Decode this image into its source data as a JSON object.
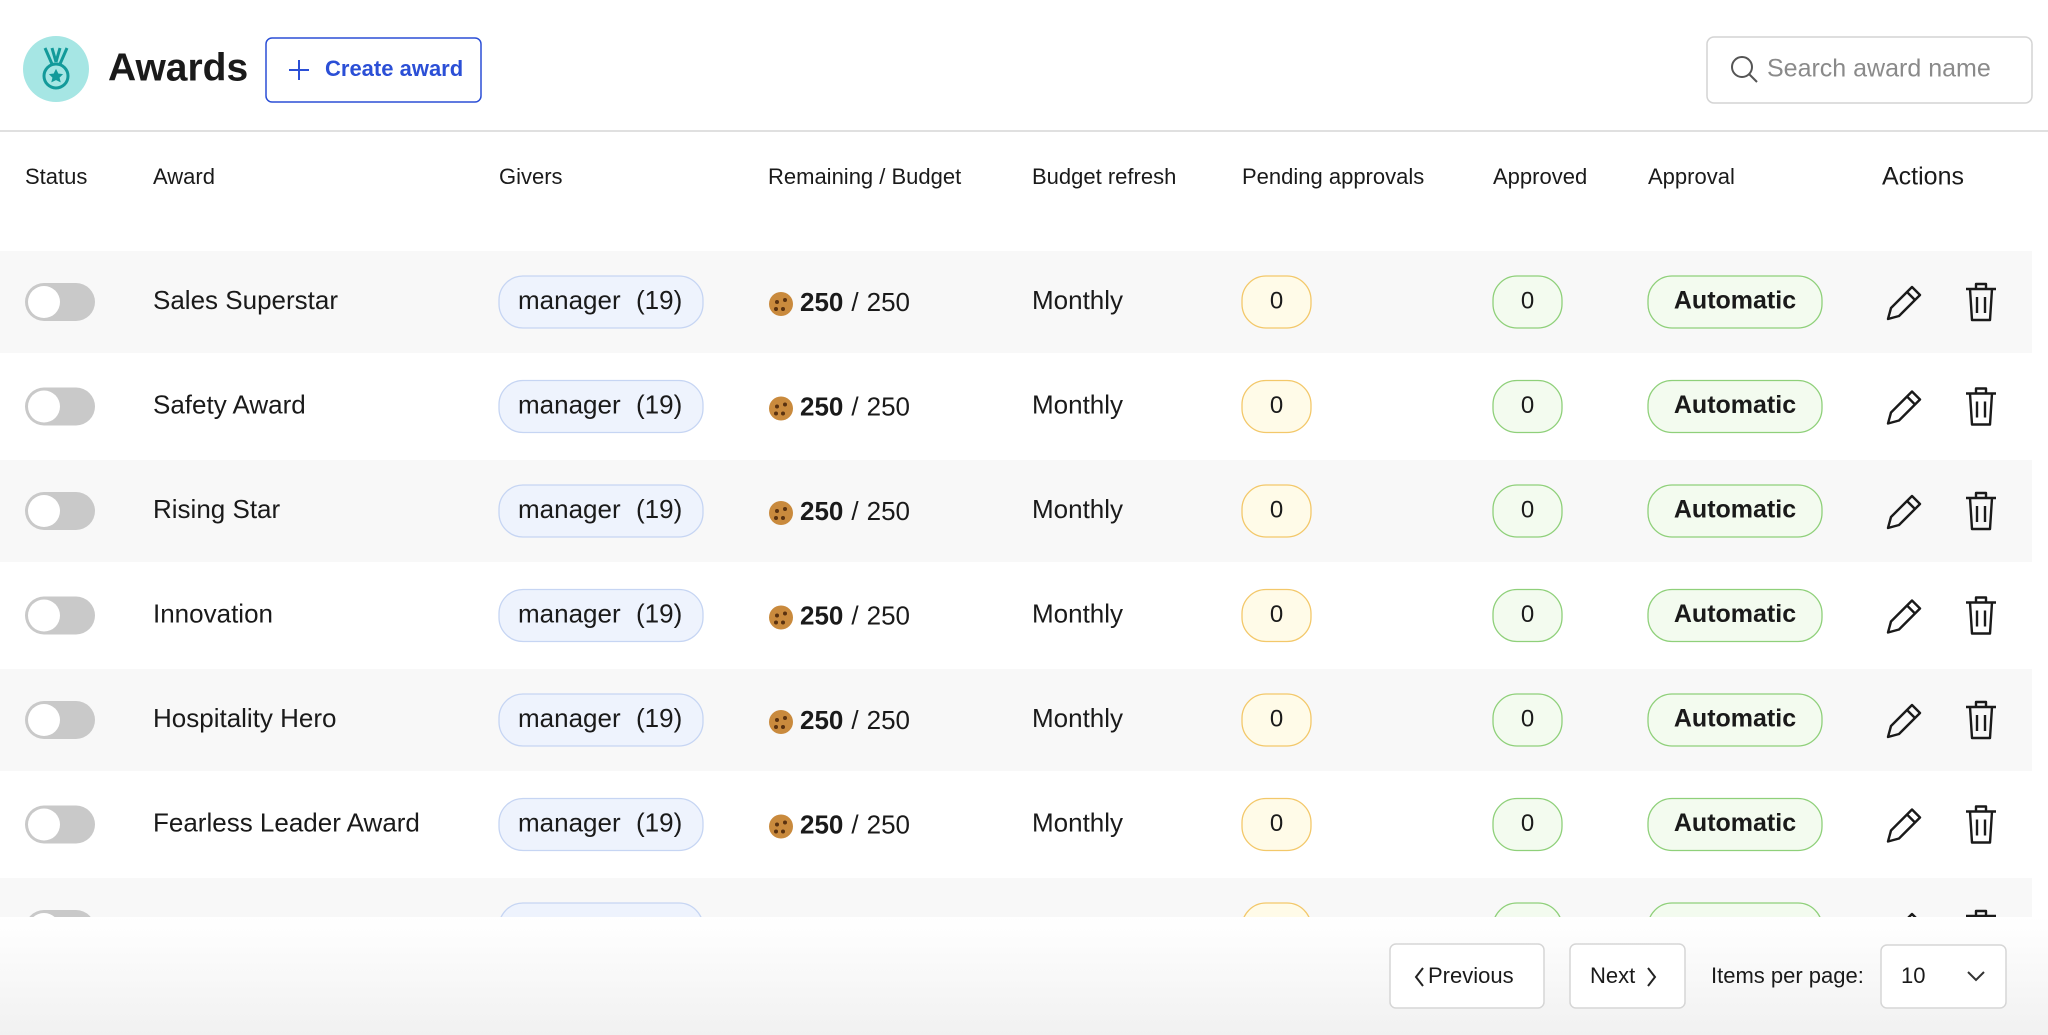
{
  "header": {
    "title": "Awards",
    "create_button": "Create award",
    "search_placeholder": "Search award name"
  },
  "table": {
    "columns": [
      "Status",
      "Award",
      "Givers",
      "Remaining / Budget",
      "Budget refresh",
      "Pending approvals",
      "Approved",
      "Approval",
      "Actions"
    ],
    "budget_separator": "/",
    "rows": [
      {
        "award": "Sales Superstar",
        "givers_role": "manager",
        "givers_count": "(19)",
        "remaining": "250",
        "budget": "250",
        "refresh": "Monthly",
        "pending": "0",
        "approved": "0",
        "approval": "Automatic"
      },
      {
        "award": "Safety Award",
        "givers_role": "manager",
        "givers_count": "(19)",
        "remaining": "250",
        "budget": "250",
        "refresh": "Monthly",
        "pending": "0",
        "approved": "0",
        "approval": "Automatic"
      },
      {
        "award": "Rising Star",
        "givers_role": "manager",
        "givers_count": "(19)",
        "remaining": "250",
        "budget": "250",
        "refresh": "Monthly",
        "pending": "0",
        "approved": "0",
        "approval": "Automatic"
      },
      {
        "award": "Innovation",
        "givers_role": "manager",
        "givers_count": "(19)",
        "remaining": "250",
        "budget": "250",
        "refresh": "Monthly",
        "pending": "0",
        "approved": "0",
        "approval": "Automatic"
      },
      {
        "award": "Hospitality Hero",
        "givers_role": "manager",
        "givers_count": "(19)",
        "remaining": "250",
        "budget": "250",
        "refresh": "Monthly",
        "pending": "0",
        "approved": "0",
        "approval": "Automatic"
      },
      {
        "award": "Fearless Leader Award",
        "givers_role": "manager",
        "givers_count": "(19)",
        "remaining": "250",
        "budget": "250",
        "refresh": "Monthly",
        "pending": "0",
        "approved": "0",
        "approval": "Automatic"
      }
    ]
  },
  "pagination": {
    "previous": "Previous",
    "next": "Next",
    "items_per_page_label": "Items per page:",
    "items_per_page": "10"
  }
}
